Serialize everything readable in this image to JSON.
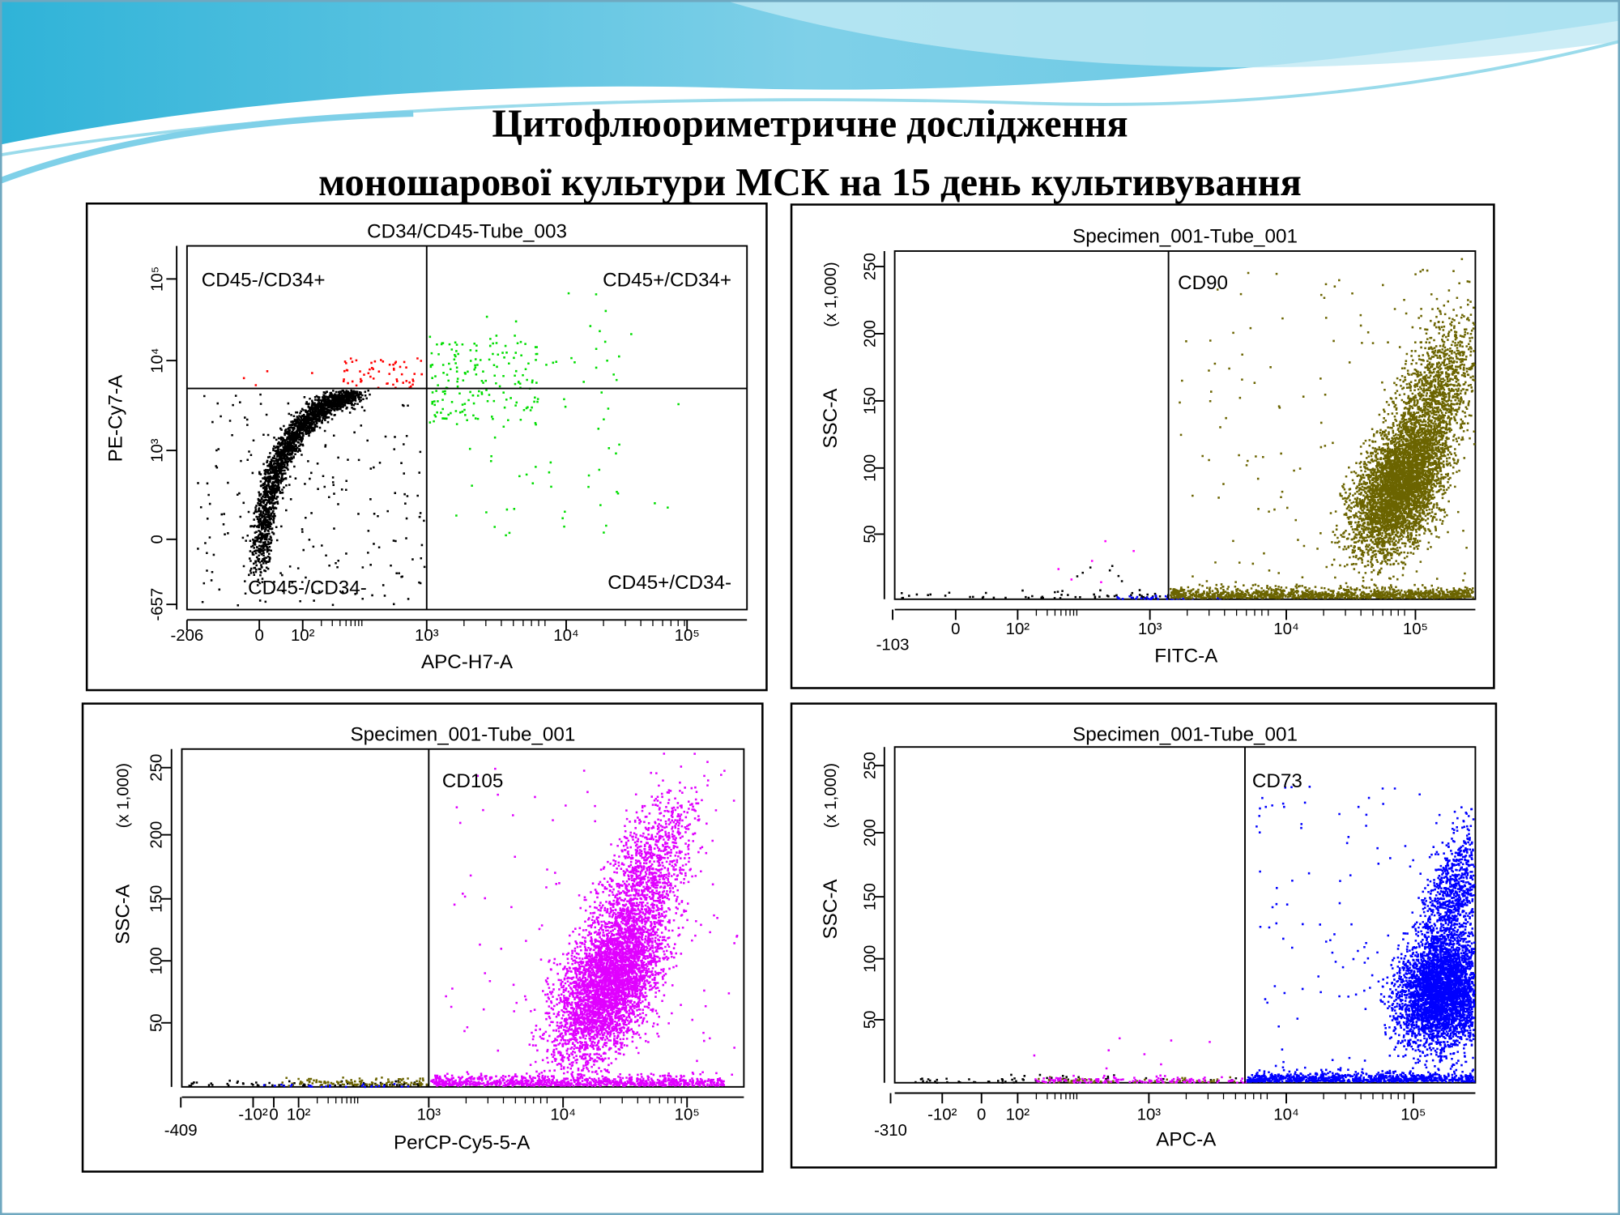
{
  "header": {
    "title_line1": "Цитофлюориметричне дослідження",
    "title_line2": "моношарової культури МСК на 15 день культивування"
  },
  "panels": [
    {
      "title": "CD34/CD45-Tube_003",
      "x_label": "APC-H7-A",
      "y_label": "PE-Cy7-A",
      "x_ticks": [
        "-206",
        "0",
        "10²",
        "10³",
        "10⁴",
        "10⁵"
      ],
      "y_ticks": [
        "10⁵",
        "10⁴",
        "10³",
        "0",
        "-657"
      ],
      "gates": [
        "CD45-/CD34+",
        "CD45+/CD34+",
        "CD45-/CD34-",
        "CD45+/CD34-"
      ]
    },
    {
      "title": "Specimen_001-Tube_001",
      "x_label": "FITC-A",
      "y_label": "SSC-A",
      "y_unit": "(x 1,000)",
      "x_ticks": [
        "-103",
        "0",
        "10²",
        "10³",
        "10⁴",
        "10⁵"
      ],
      "y_ticks": [
        "250",
        "200",
        "150",
        "100",
        "50"
      ],
      "gates": [
        "CD90"
      ]
    },
    {
      "title": "Specimen_001-Tube_001",
      "x_label": "PerCP-Cy5-5-A",
      "y_label": "SSC-A",
      "y_unit": "(x 1,000)",
      "x_ticks": [
        "-409",
        "-10²",
        "0",
        "10²",
        "10³",
        "10⁴",
        "10⁵"
      ],
      "y_ticks": [
        "250",
        "200",
        "150",
        "100",
        "50"
      ],
      "gates": [
        "CD105"
      ]
    },
    {
      "title": "Specimen_001-Tube_001",
      "x_label": "APC-A",
      "y_label": "SSC-A",
      "y_unit": "(x 1,000)",
      "x_ticks": [
        "-310",
        "-10²",
        "0",
        "10²",
        "10³",
        "10⁴",
        "10⁵"
      ],
      "y_ticks": [
        "250",
        "200",
        "150",
        "100",
        "50"
      ],
      "gates": [
        "CD73"
      ]
    }
  ]
}
